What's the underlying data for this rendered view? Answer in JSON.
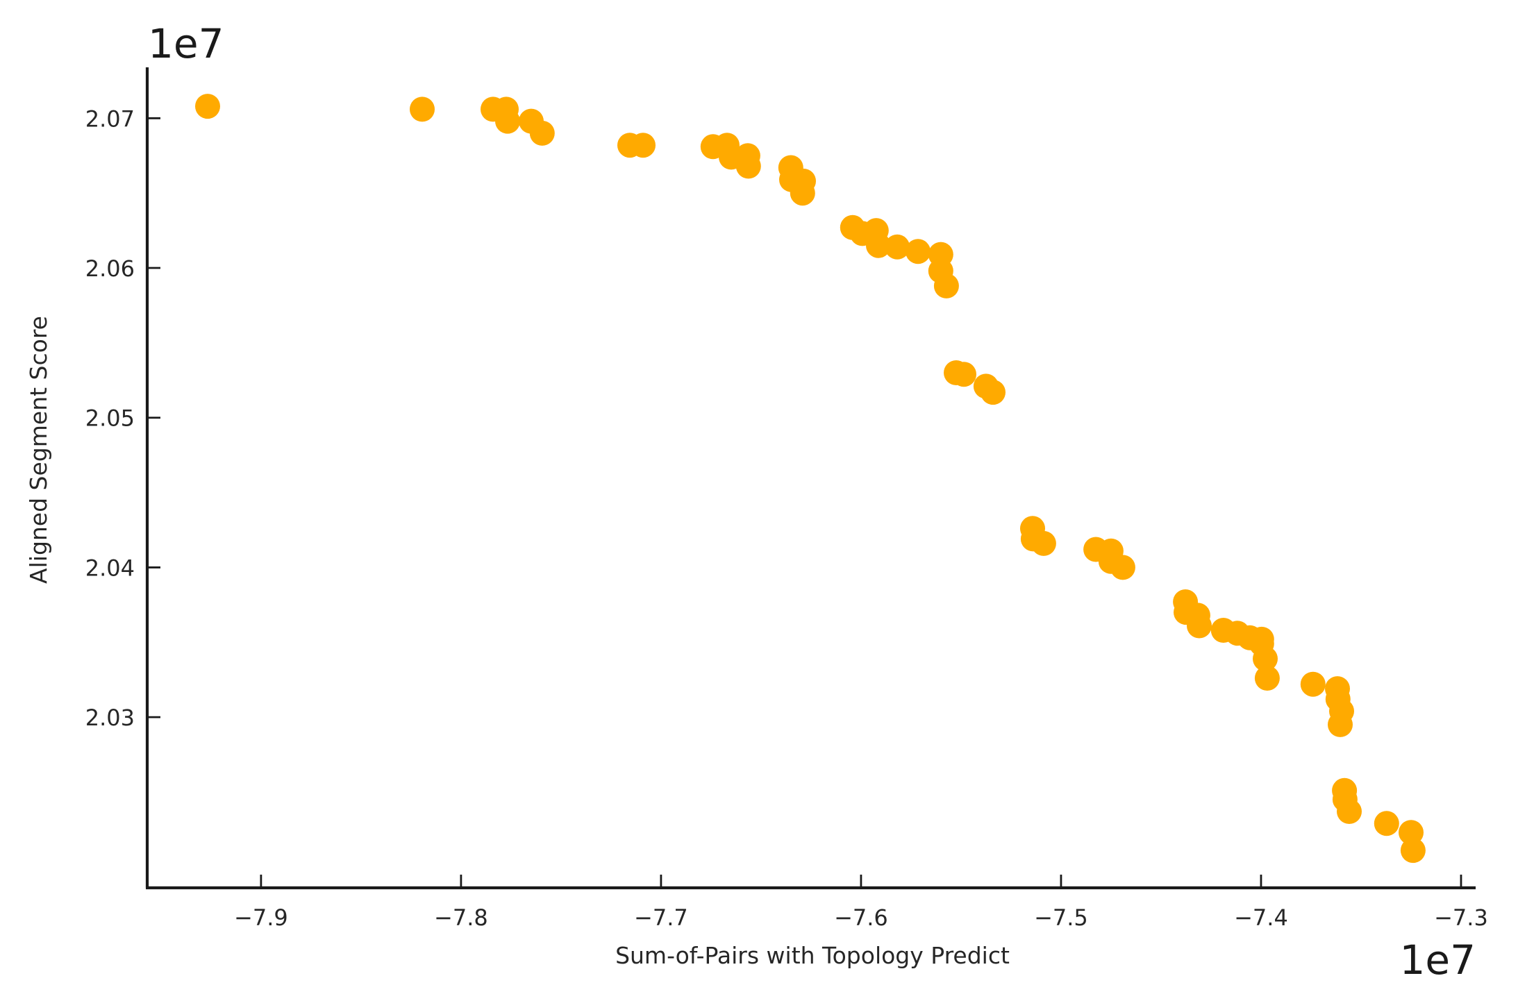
{
  "chart_data": {
    "type": "scatter",
    "title": "",
    "xlabel": "Sum-of-Pairs with Topology Predict",
    "ylabel": "Aligned Segment Score",
    "x_offset_label": "1e7",
    "y_offset_label": "1e7",
    "xlim": [
      -7.9569,
      -7.2927
    ],
    "ylim": [
      2.0186,
      2.0734
    ],
    "x_ticks": [
      -7.9,
      -7.8,
      -7.7,
      -7.6,
      -7.5,
      -7.4,
      -7.3
    ],
    "x_tick_labels": [
      "−7.9",
      "−7.8",
      "−7.7",
      "−7.6",
      "−7.5",
      "−7.4",
      "−7.3"
    ],
    "y_ticks": [
      2.03,
      2.04,
      2.05,
      2.06,
      2.07
    ],
    "y_tick_labels": [
      "2.03",
      "2.04",
      "2.05",
      "2.06",
      "2.07"
    ],
    "grid": false,
    "legend": null,
    "marker_color": "#FFAA00",
    "series": [
      {
        "name": "points",
        "x": [
          -7.9267,
          -7.8194,
          -7.784,
          -7.7774,
          -7.7767,
          -7.7649,
          -7.7594,
          -7.7156,
          -7.709,
          -7.674,
          -7.667,
          -7.6649,
          -7.6566,
          -7.6563,
          -7.6351,
          -7.6347,
          -7.6288,
          -7.6292,
          -7.6042,
          -7.5993,
          -7.5924,
          -7.5913,
          -7.5819,
          -7.5715,
          -7.5601,
          -7.5601,
          -7.5573,
          -7.5524,
          -7.5486,
          -7.5375,
          -7.534,
          -7.5142,
          -7.5139,
          -7.5087,
          -7.4826,
          -7.475,
          -7.475,
          -7.4691,
          -7.4378,
          -7.4375,
          -7.4316,
          -7.4309,
          -7.4188,
          -7.4118,
          -7.4056,
          -7.3997,
          -7.3997,
          -7.3979,
          -7.3969,
          -7.374,
          -7.3618,
          -7.3615,
          -7.3597,
          -7.3604,
          -7.3583,
          -7.358,
          -7.3559,
          -7.3372,
          -7.325,
          -7.324
        ],
        "y": [
          2.0708,
          2.0706,
          2.0706,
          2.0706,
          2.0698,
          2.0698,
          2.069,
          2.0682,
          2.0682,
          2.0681,
          2.0682,
          2.0674,
          2.0675,
          2.0668,
          2.0667,
          2.0659,
          2.0658,
          2.065,
          2.0627,
          2.0623,
          2.0625,
          2.0615,
          2.0614,
          2.0611,
          2.0609,
          2.0598,
          2.0588,
          2.053,
          2.0529,
          2.0521,
          2.0517,
          2.0426,
          2.0419,
          2.0416,
          2.0412,
          2.0411,
          2.0404,
          2.04,
          2.0377,
          2.037,
          2.0368,
          2.0361,
          2.0358,
          2.0356,
          2.0353,
          2.0352,
          2.0349,
          2.0339,
          2.0326,
          2.0322,
          2.0319,
          2.0312,
          2.0304,
          2.0295,
          2.0251,
          2.0245,
          2.0237,
          2.0229,
          2.0223,
          2.0211
        ]
      }
    ]
  }
}
